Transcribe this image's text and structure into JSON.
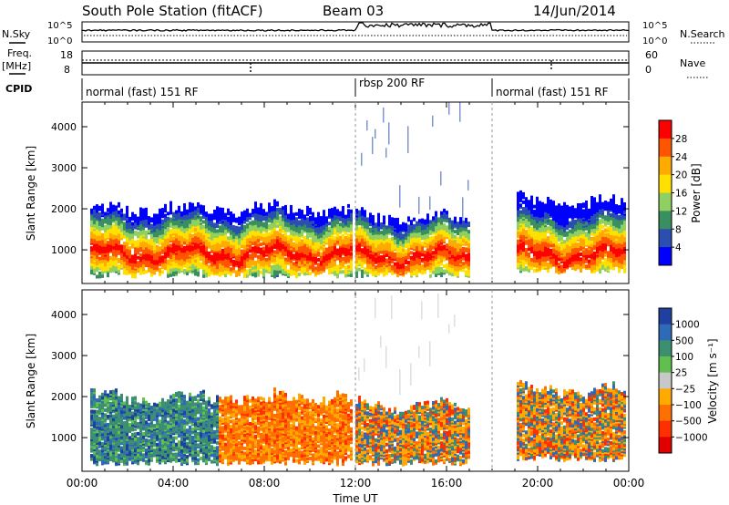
{
  "header": {
    "station": "South Pole Station (fitACF)",
    "beam": "Beam 03",
    "date": "14/Jun/2014"
  },
  "aux_panel": {
    "nsky_label": "N.Sky",
    "nsearch_label": "N.Search",
    "noise_tick_top": "10^5",
    "noise_tick_bottom": "10^0",
    "freq_label": "Freq.",
    "freq_unit": "[MHz]",
    "freq_ticks": [
      "18",
      "8"
    ],
    "nave_label": "Nave",
    "nave_ticks": [
      "60",
      "0"
    ],
    "cpid_label": "CPID",
    "cpid_segments": [
      {
        "label": "normal (fast) 151 RF",
        "start": 0,
        "end": 12
      },
      {
        "label": "rbsp 200 RF",
        "start": 12,
        "end": 18
      },
      {
        "label": "normal (fast) 151 RF",
        "start": 18,
        "end": 24
      }
    ]
  },
  "chart_data": [
    {
      "type": "heatmap",
      "ylabel": "Slant Range [km]",
      "xlabel": "Time UT",
      "xlim": [
        0,
        24
      ],
      "ylim": [
        180,
        4600
      ],
      "y_ticks": [
        "1000",
        "2000",
        "3000",
        "4000"
      ],
      "x_ticks": [
        "00:00",
        "04:00",
        "08:00",
        "12:00",
        "16:00",
        "20:00",
        "00:00"
      ],
      "colorbar": {
        "label": "Power [dB]",
        "ticks": [
          "28",
          "24",
          "20",
          "16",
          "12",
          "8",
          "4"
        ],
        "colors": [
          "#ff0000",
          "#ff5500",
          "#ffaa00",
          "#ffe000",
          "#8fd060",
          "#3a8f60",
          "#2a4fb0",
          "#0000ff"
        ]
      },
      "bands": [
        {
          "start": 0.3,
          "end": 11.8,
          "range_low": 300,
          "range_high": 1800,
          "core_low": 650,
          "core_high": 1100
        },
        {
          "start": 12.0,
          "end": 17.0,
          "range_low": 300,
          "range_high": 1600,
          "core_low": 600,
          "core_high": 1000
        },
        {
          "start": 19.0,
          "end": 23.8,
          "range_low": 400,
          "range_high": 2000,
          "core_low": 600,
          "core_high": 1100
        }
      ]
    },
    {
      "type": "heatmap",
      "ylabel": "Slant Range [km]",
      "xlabel": "Time UT",
      "xlim": [
        0,
        24
      ],
      "ylim": [
        180,
        4600
      ],
      "y_ticks": [
        "1000",
        "2000",
        "3000",
        "4000"
      ],
      "x_ticks": [
        "00:00",
        "04:00",
        "08:00",
        "12:00",
        "16:00",
        "20:00",
        "00:00"
      ],
      "colorbar": {
        "label": "Velocity [m s⁻¹]",
        "ticks": [
          "1000",
          "500",
          "100",
          "25",
          "−25",
          "−100",
          "−500",
          "−1000"
        ],
        "colors": [
          "#2040a0",
          "#2f6ab8",
          "#3c8f70",
          "#5fc050",
          "#c8c8c8",
          "#ffaa00",
          "#ff7000",
          "#ff3000",
          "#e00000"
        ]
      }
    }
  ]
}
